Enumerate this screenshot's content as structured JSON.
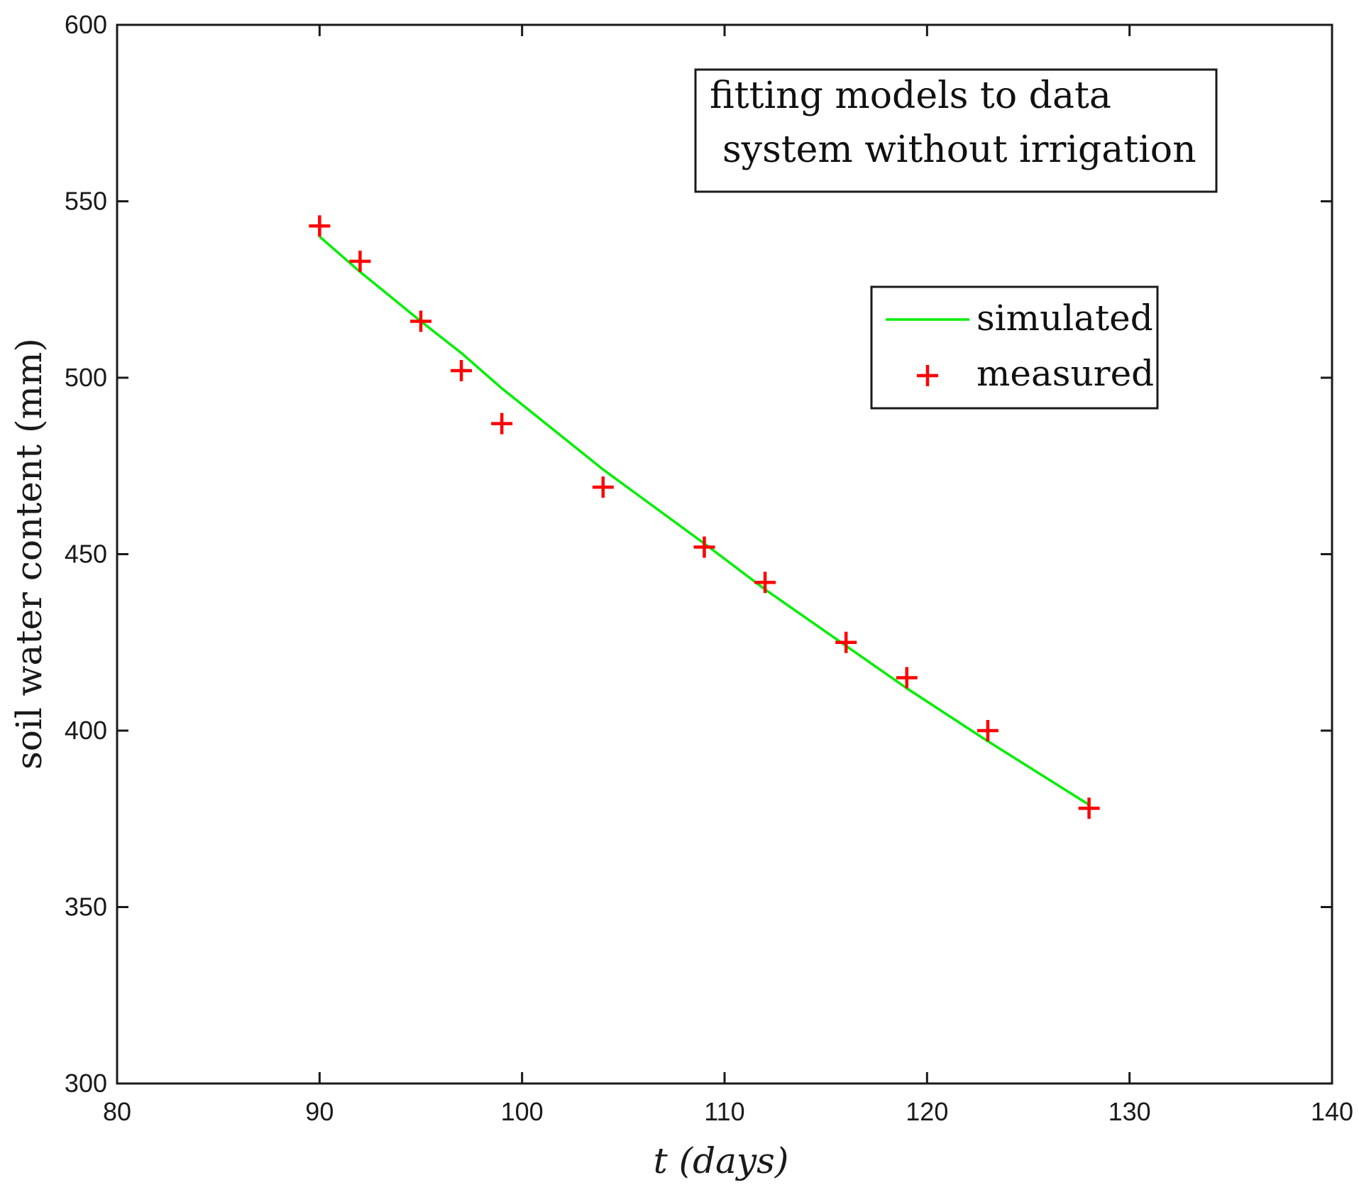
{
  "chart_data": {
    "type": "line",
    "title": "",
    "xlabel": "t (days)",
    "ylabel": "soil water content (mm)",
    "xlim": [
      80,
      140
    ],
    "ylim": [
      300,
      600
    ],
    "xticks": [
      80,
      90,
      100,
      110,
      120,
      130,
      140
    ],
    "yticks": [
      300,
      350,
      400,
      450,
      500,
      550,
      600
    ],
    "grid": false,
    "annotation": {
      "lines": [
        "fitting models to data",
        "system without irrigation"
      ],
      "placement": "top-right"
    },
    "legend": {
      "placement": "upper-right, below annotation"
    },
    "series": [
      {
        "name": "simulated",
        "style": "line",
        "color": "#00ee00",
        "x": [
          90,
          92,
          95,
          97,
          99,
          104,
          109,
          112,
          116,
          119,
          123,
          128
        ],
        "y": [
          540,
          530,
          516,
          507,
          497,
          474,
          453,
          440,
          424,
          412,
          397,
          379
        ]
      },
      {
        "name": "measured",
        "style": "marker-plus",
        "color": "#ff0000",
        "x": [
          90,
          92,
          95,
          97,
          99,
          104,
          109,
          112,
          116,
          119,
          123,
          128
        ],
        "y": [
          543,
          533,
          516,
          502,
          487,
          469,
          452,
          442,
          425,
          415,
          400,
          378
        ]
      }
    ]
  }
}
